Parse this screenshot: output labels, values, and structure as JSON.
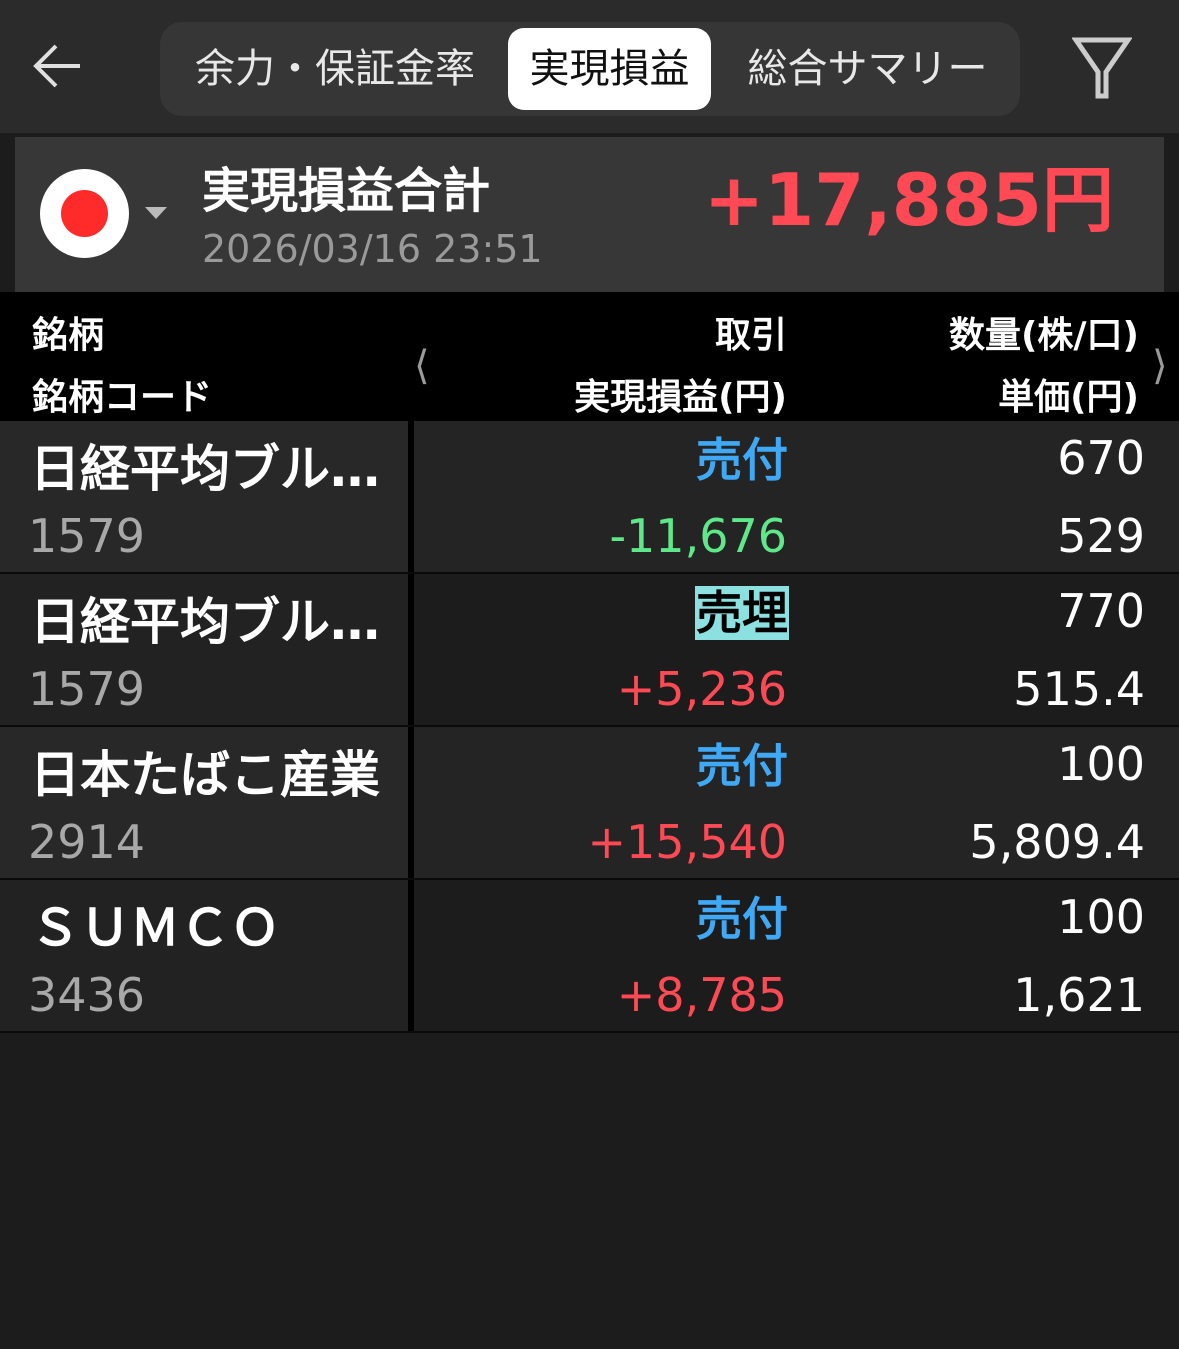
{
  "header": {
    "tabs": [
      {
        "label": "余力・保証金率",
        "active": false
      },
      {
        "label": "実現損益",
        "active": true
      },
      {
        "label": "総合サマリー",
        "active": false
      }
    ],
    "back_icon": "arrow-left-icon",
    "filter_icon": "filter-icon"
  },
  "summary": {
    "market_flag": "japan-flag",
    "title": "実現損益合計",
    "date": "2026/03/16 23:51",
    "total": "+17,885円",
    "total_color": "#ff4a55"
  },
  "table": {
    "headers": {
      "name": "銘柄",
      "code": "銘柄コード",
      "trade": "取引",
      "pl": "実現損益(円)",
      "qty": "数量(株/口)",
      "price": "単価(円)"
    },
    "rows": [
      {
        "name": "日経平均ブル…",
        "code": "1579",
        "trade": "売付",
        "pl": "-11,676",
        "qty": "670",
        "price": "529"
      },
      {
        "name": "日経平均ブル…",
        "code": "1579",
        "trade": "売埋",
        "pl": "+5,236",
        "qty": "770",
        "price": "515.4"
      },
      {
        "name": "日本たばこ産業",
        "code": "2914",
        "trade": "売付",
        "pl": "+15,540",
        "qty": "100",
        "price": "5,809.4"
      },
      {
        "name": "ＳＵＭＣＯ",
        "code": "3436",
        "trade": "売付",
        "pl": "+8,785",
        "qty": "100",
        "price": "1,621"
      }
    ]
  },
  "colors": {
    "sell": "#3fa9f5",
    "close_bg": "#8de0e0",
    "profit": "#ff4a55",
    "loss": "#5ee88a"
  }
}
